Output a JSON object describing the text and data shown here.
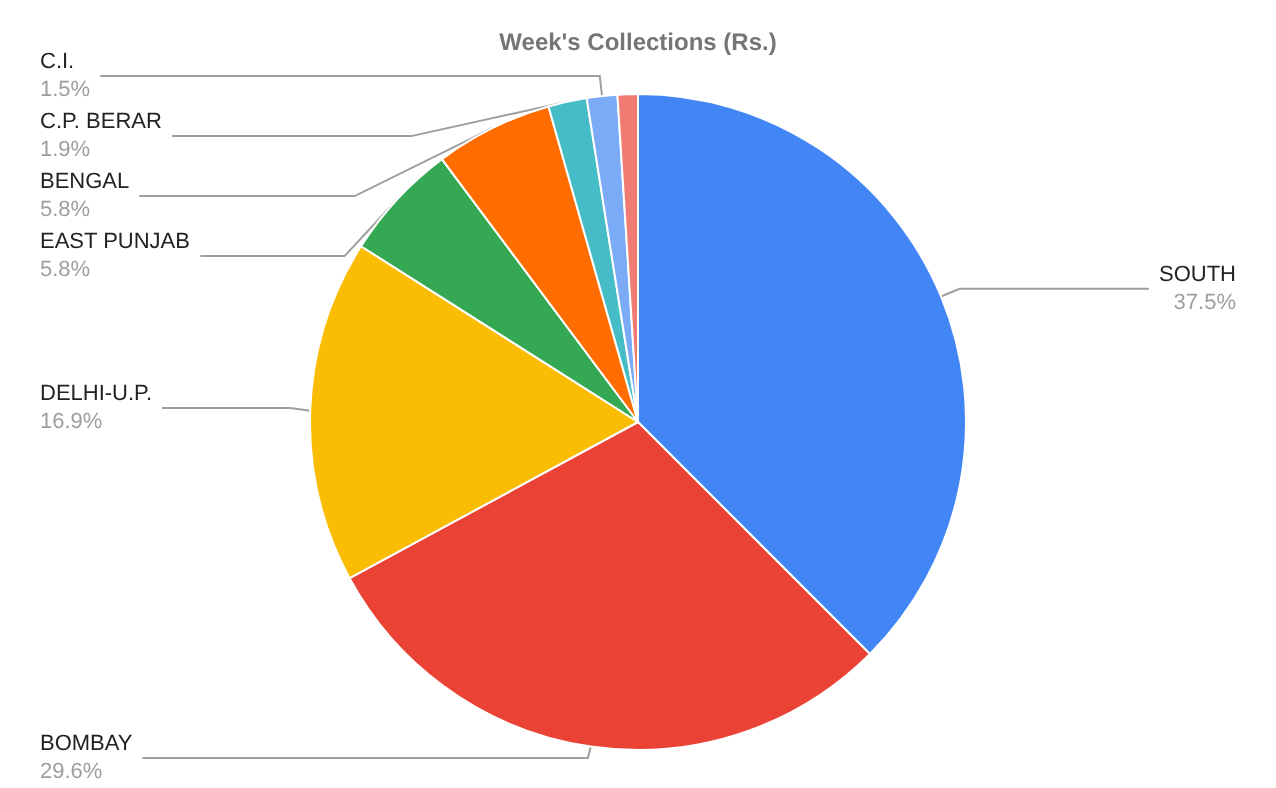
{
  "chart_data": {
    "type": "pie",
    "title": "Week's Collections (Rs.)",
    "categories": [
      "SOUTH",
      "BOMBAY",
      "DELHI-U.P.",
      "EAST PUNJAB",
      "BENGAL",
      "C.P. BERAR",
      "C.I.",
      null
    ],
    "values": [
      37.5,
      29.6,
      16.9,
      5.8,
      5.8,
      1.9,
      1.5,
      1.0
    ],
    "value_labels": [
      "37.5%",
      "29.6%",
      "16.9%",
      "5.8%",
      "5.8%",
      "1.9%",
      "1.5%",
      null
    ],
    "colors": [
      "#4285f4",
      "#ea4335",
      "#fbbc04",
      "#34a853",
      "#ff6d01",
      "#46bdc6",
      "#7baaf7",
      "#f07b72"
    ],
    "legend": false
  }
}
